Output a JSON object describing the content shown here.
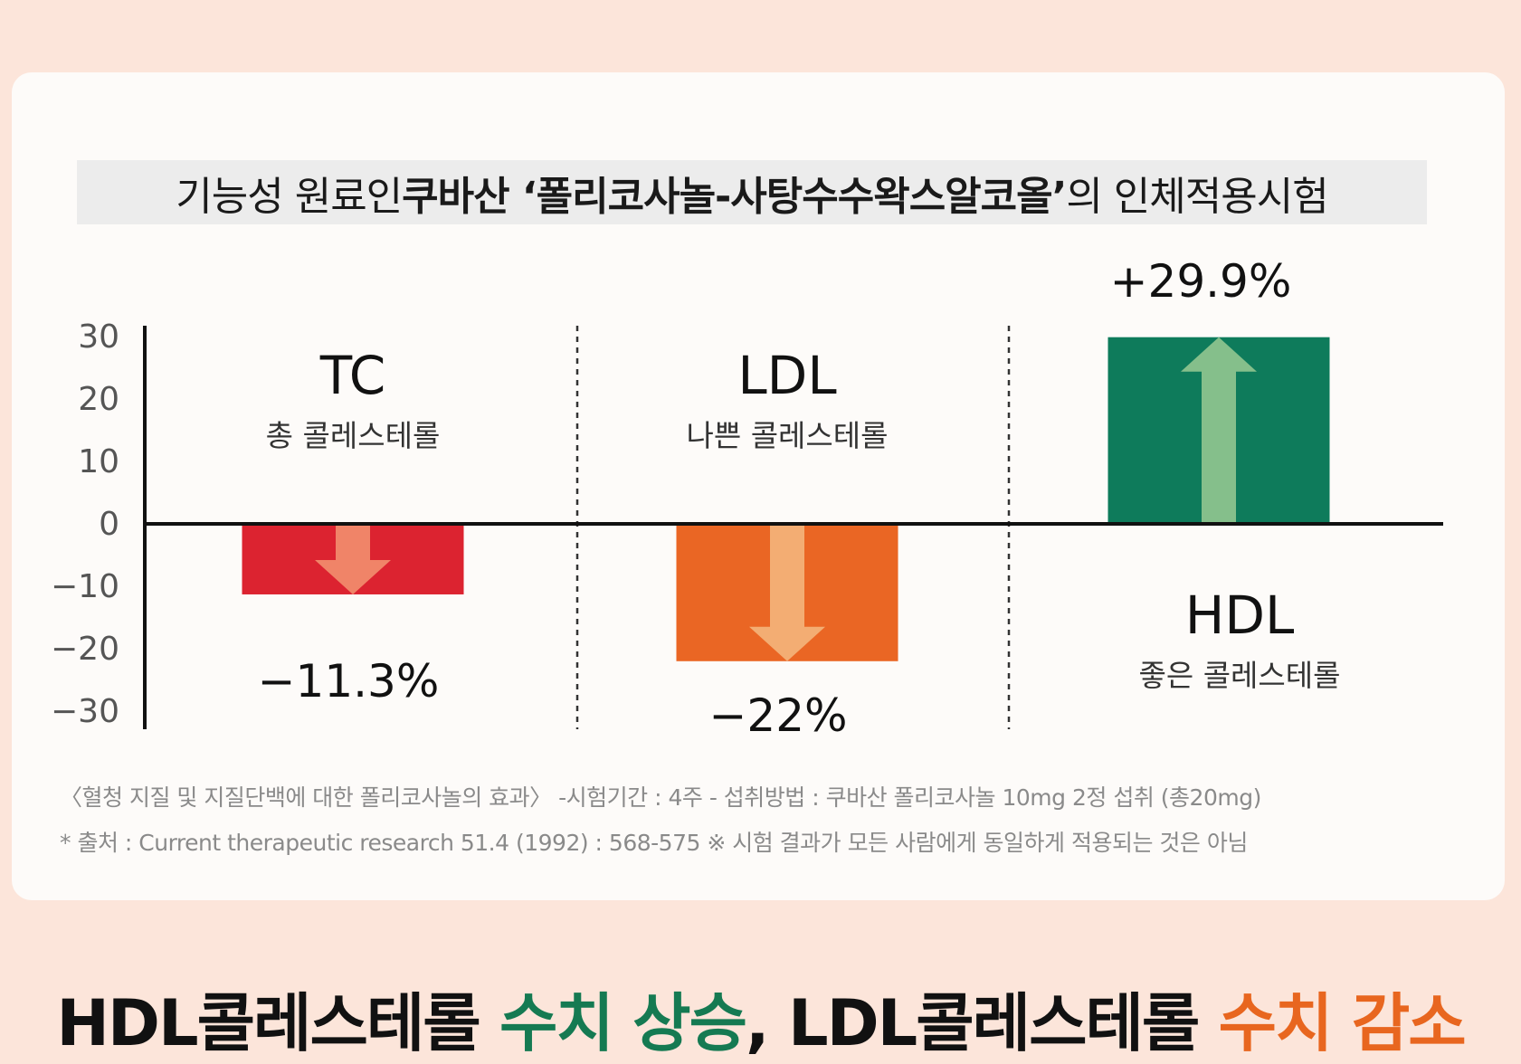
{
  "title": {
    "pre": "기능성 원료인 ",
    "bold": "쿠바산 ‘폴리코사놀-사탕수수왁스알코올’",
    "post": "의 인체적용시험"
  },
  "chart_data": {
    "type": "bar",
    "categories": [
      "TC",
      "LDL",
      "HDL"
    ],
    "sublabels": [
      "총 콜레스테롤",
      "나쁜 콜레스테롤",
      "좋은 콜레스테롤"
    ],
    "values": [
      -11.3,
      -22,
      29.9
    ],
    "value_labels": [
      "−11.3%",
      "−22%",
      "+29.9%"
    ],
    "colors": [
      "#dc2330",
      "#ea6624",
      "#0e7b5b"
    ],
    "arrow_colors": [
      "#f08468",
      "#f3ad73",
      "#85bf8b"
    ],
    "yticks": [
      30,
      20,
      10,
      0,
      -10,
      -20,
      -30
    ],
    "ytick_labels": [
      "30",
      "20",
      "10",
      "0",
      "−10",
      "−20",
      "−30"
    ],
    "ylim": [
      -30,
      30
    ]
  },
  "footnotes": [
    "〈혈청 지질 및 지질단백에 대한 폴리코사놀의 효과〉 -시험기간 : 4주  - 섭취방법 : 쿠바산 폴리코사놀 10mg 2정 섭취 (총20mg)",
    "* 출처 : Current therapeutic research 51.4 (1992) : 568-575    ※ 시험 결과가 모든 사람에게 동일하게 적용되는 것은 아님"
  ],
  "headline": {
    "p1": "HDL콜레스테롤 ",
    "p2": "수치 상승",
    "p3": ", LDL콜레스테롤 ",
    "p4": "수치 감소"
  }
}
